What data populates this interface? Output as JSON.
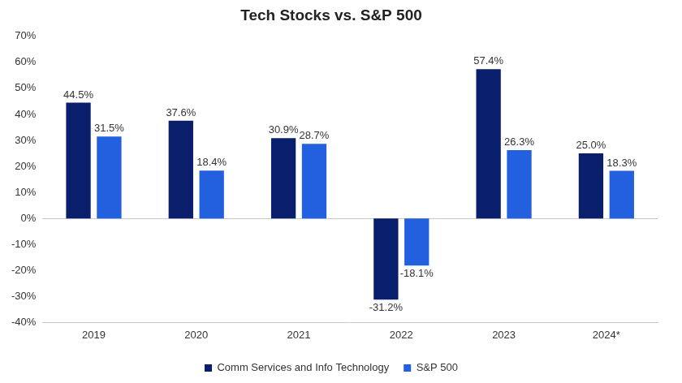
{
  "chart_data": {
    "type": "bar",
    "title": "Tech Stocks vs. S&P 500",
    "categories": [
      "2019",
      "2020",
      "2021",
      "2022",
      "2023",
      "2024*"
    ],
    "series": [
      {
        "name": "Comm Services and Info Technology",
        "color": "#0a1f6b",
        "values": [
          44.5,
          37.6,
          30.9,
          -31.2,
          57.4,
          25.0
        ],
        "value_labels": [
          "44.5%",
          "37.6%",
          "30.9%",
          "-31.2%",
          "57.4%",
          "25.0%"
        ]
      },
      {
        "name": "S&P 500",
        "color": "#2360e0",
        "values": [
          31.5,
          18.4,
          28.7,
          -18.1,
          26.3,
          18.3
        ],
        "value_labels": [
          "31.5%",
          "18.4%",
          "28.7%",
          "-18.1%",
          "26.3%",
          "18.3%"
        ]
      }
    ],
    "ylim": [
      -40,
      70
    ],
    "yticks": [
      {
        "value": -40,
        "label": "-40%"
      },
      {
        "value": -30,
        "label": "-30%"
      },
      {
        "value": -20,
        "label": "-20%"
      },
      {
        "value": -10,
        "label": "-10%"
      },
      {
        "value": 0,
        "label": "0%"
      },
      {
        "value": 10,
        "label": "10%"
      },
      {
        "value": 20,
        "label": "20%"
      },
      {
        "value": 30,
        "label": "30%"
      },
      {
        "value": 40,
        "label": "40%"
      },
      {
        "value": 50,
        "label": "50%"
      },
      {
        "value": 60,
        "label": "60%"
      },
      {
        "value": 70,
        "label": "70%"
      }
    ],
    "grid": false,
    "legend": "bottom",
    "data_labels": true
  }
}
